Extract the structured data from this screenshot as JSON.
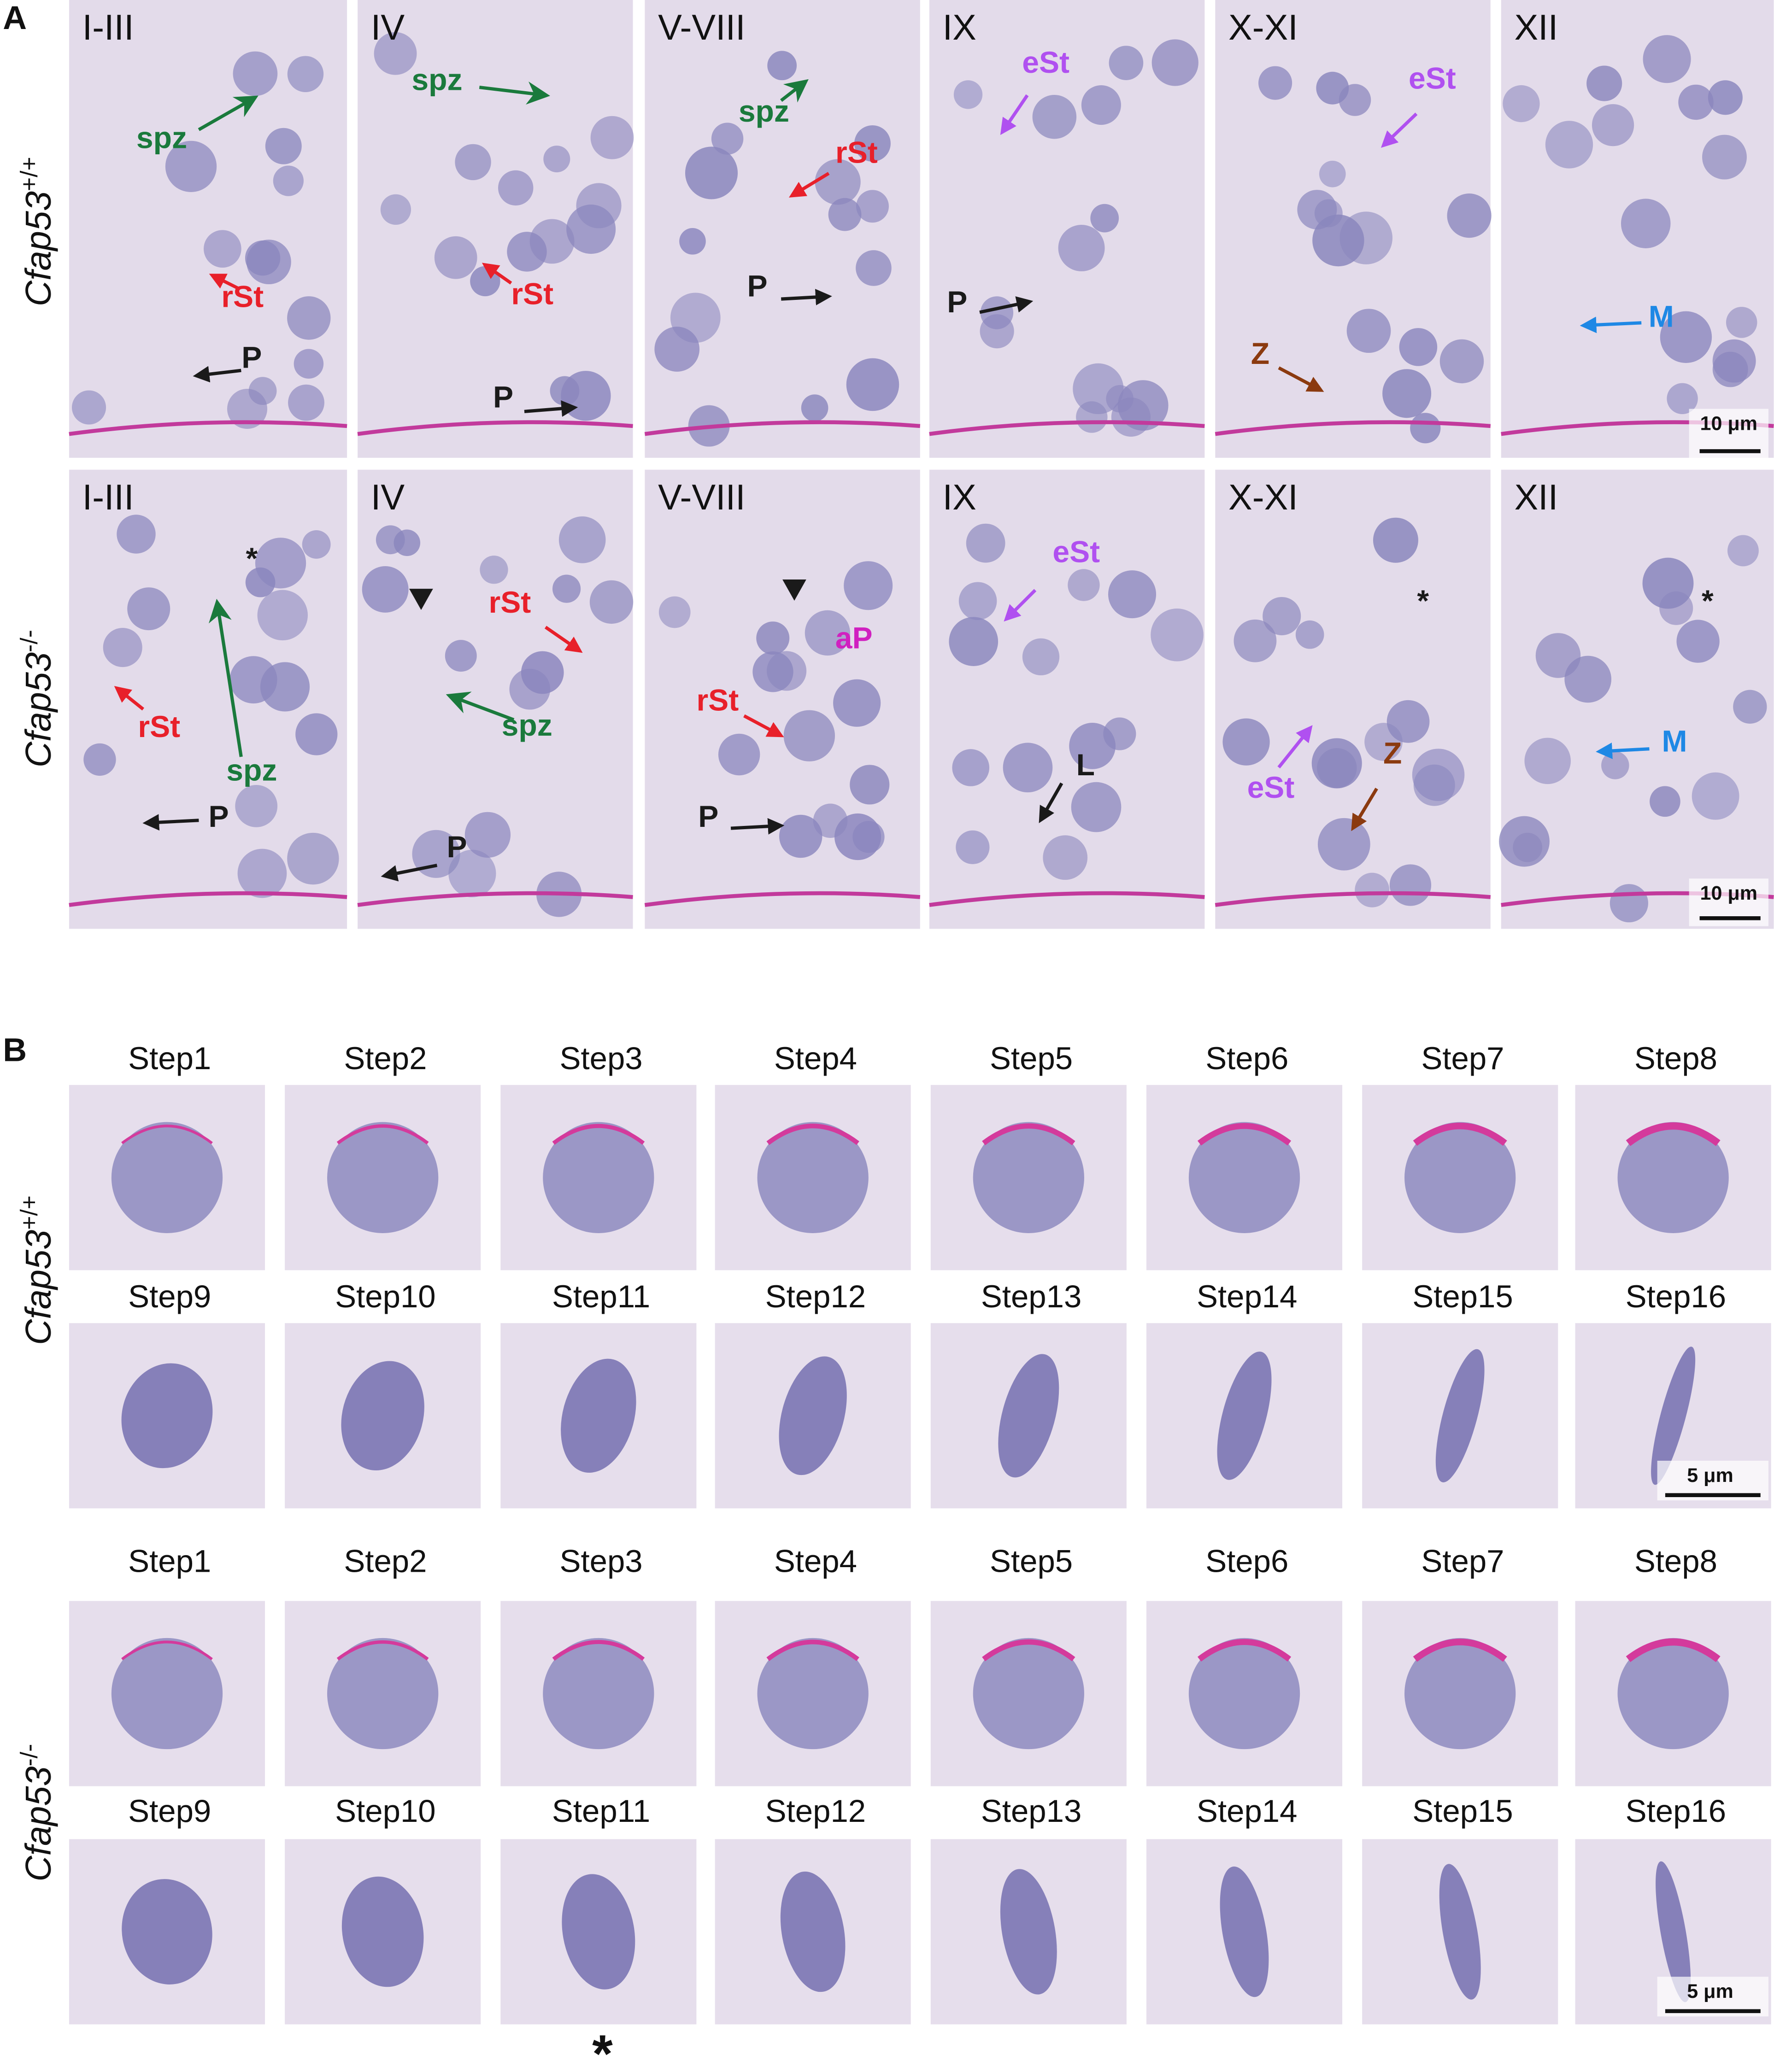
{
  "panel_a": {
    "label": "A",
    "rows": [
      {
        "genotype": {
          "name": "Cfap53",
          "superscript": "+/+"
        },
        "panels": [
          {
            "stage": "I-III",
            "annotations": [
              "spz",
              "rSt",
              "P"
            ]
          },
          {
            "stage": "IV",
            "annotations": [
              "spz",
              "rSt",
              "P"
            ]
          },
          {
            "stage": "V-VIII",
            "annotations": [
              "spz",
              "rSt",
              "P"
            ]
          },
          {
            "stage": "IX",
            "annotations": [
              "eSt",
              "P"
            ]
          },
          {
            "stage": "X-XI",
            "annotations": [
              "eSt",
              "Z"
            ]
          },
          {
            "stage": "XII",
            "annotations": [
              "M"
            ]
          }
        ],
        "scale_bar": "10 μm"
      },
      {
        "genotype": {
          "name": "Cfap53",
          "superscript": "-/-"
        },
        "panels": [
          {
            "stage": "I-III",
            "annotations": [
              "*",
              "spz",
              "rSt",
              "P"
            ]
          },
          {
            "stage": "IV",
            "annotations": [
              "rSt",
              "spz",
              "P"
            ]
          },
          {
            "stage": "V-VIII",
            "annotations": [
              "aP",
              "rSt",
              "P"
            ]
          },
          {
            "stage": "IX",
            "annotations": [
              "eSt",
              "L"
            ]
          },
          {
            "stage": "X-XI",
            "annotations": [
              "*",
              "eSt",
              "Z"
            ]
          },
          {
            "stage": "XII",
            "annotations": [
              "*",
              "M"
            ]
          }
        ],
        "scale_bar": "10 μm"
      }
    ]
  },
  "panel_b": {
    "label": "B",
    "groups": [
      {
        "genotype": {
          "name": "Cfap53",
          "superscript": "+/+"
        },
        "rows": [
          [
            "Step1",
            "Step2",
            "Step3",
            "Step4",
            "Step5",
            "Step6",
            "Step7",
            "Step8"
          ],
          [
            "Step9",
            "Step10",
            "Step11",
            "Step12",
            "Step13",
            "Step14",
            "Step15",
            "Step16"
          ]
        ],
        "scale_bar": "5 μm"
      },
      {
        "genotype": {
          "name": "Cfap53",
          "superscript": "-/-"
        },
        "rows": [
          [
            "Step1",
            "Step2",
            "Step3",
            "Step4",
            "Step5",
            "Step6",
            "Step7",
            "Step8"
          ],
          [
            "Step9",
            "Step10",
            "Step11",
            "Step12",
            "Step13",
            "Step14",
            "Step15",
            "Step16"
          ]
        ],
        "scale_bar": "5 μm"
      }
    ],
    "asterisk": "*"
  }
}
